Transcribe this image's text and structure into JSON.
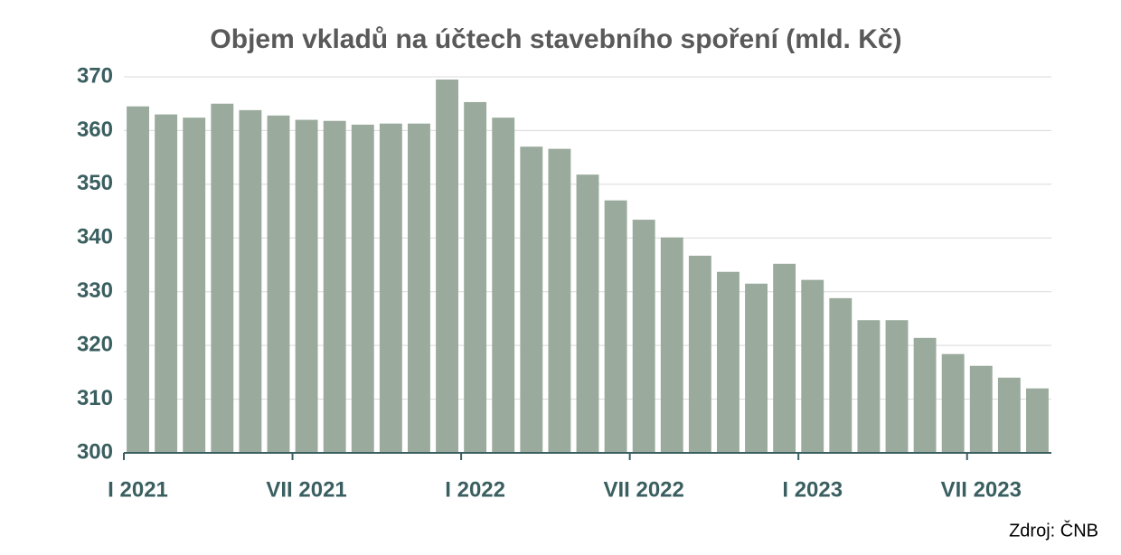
{
  "chart_data": {
    "type": "bar",
    "title": "Objem vkladů na účtech stavebního spoření (mld. Kč)",
    "source": "Zdroj: ČNB",
    "categories": [
      "I 2021",
      null,
      null,
      null,
      null,
      null,
      "VII 2021",
      null,
      null,
      null,
      null,
      null,
      "I 2022",
      null,
      null,
      null,
      null,
      null,
      "VII 2022",
      null,
      null,
      null,
      null,
      null,
      "I 2023",
      null,
      null,
      null,
      null,
      null,
      "VII 2023",
      null,
      null
    ],
    "values": [
      364.5,
      363,
      362.4,
      365,
      363.8,
      362.8,
      362,
      361.8,
      361.1,
      361.3,
      361.3,
      369.5,
      365.3,
      362.4,
      357,
      356.6,
      351.8,
      347,
      343.4,
      340.1,
      336.7,
      333.7,
      331.5,
      335.2,
      332.2,
      328.8,
      324.7,
      324.7,
      321.4,
      318.4,
      316.2,
      314,
      312
    ],
    "color": "#9aaa9c",
    "ylim": [
      300,
      370
    ],
    "yticks": [
      300,
      310,
      320,
      330,
      340,
      350,
      360,
      370
    ],
    "grid": true
  }
}
